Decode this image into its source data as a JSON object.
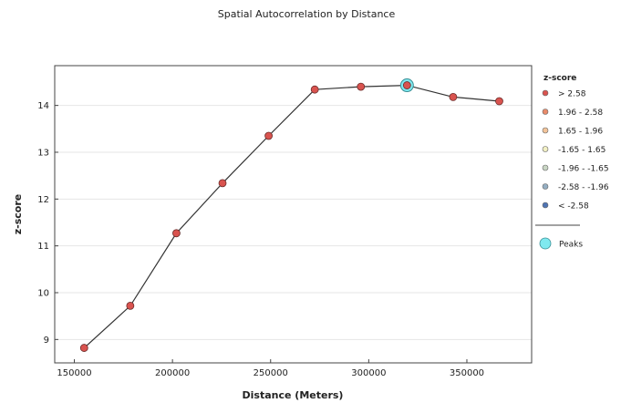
{
  "chart_data": {
    "type": "line",
    "title": "Spatial Autocorrelation by Distance",
    "xlabel": "Distance (Meters)",
    "ylabel": "z-score",
    "xlim": [
      140000,
      383000
    ],
    "ylim": [
      8.5,
      14.85
    ],
    "xticks": [
      150000,
      200000,
      250000,
      300000,
      350000
    ],
    "yticks": [
      9,
      10,
      11,
      12,
      13,
      14
    ],
    "grid": "horizontal",
    "series": [
      {
        "x": [
          155000,
          178500,
          202000,
          225500,
          249000,
          272500,
          296000,
          319500,
          343000,
          366500
        ],
        "y": [
          8.82,
          9.72,
          11.27,
          12.34,
          13.35,
          14.34,
          14.4,
          14.43,
          14.18,
          14.09
        ]
      }
    ],
    "peak": {
      "x": 319500,
      "y": 14.43
    },
    "legend": {
      "position": "right",
      "title": "z-score",
      "items": [
        {
          "label": "> 2.58",
          "color": "#d9534f"
        },
        {
          "label": "1.96 - 2.58",
          "color": "#e88a6a"
        },
        {
          "label": "1.65 - 1.96",
          "color": "#f3c49a"
        },
        {
          "label": "-1.65 - 1.65",
          "color": "#f2f0c4"
        },
        {
          "label": "-1.96 - -1.65",
          "color": "#c9d6c4"
        },
        {
          "label": "-2.58 - -1.96",
          "color": "#94aec2"
        },
        {
          "label": "< -2.58",
          "color": "#4f74b3"
        }
      ],
      "peaks_label": "Peaks",
      "peaks_color": "#7fe9ef"
    },
    "colors": {
      "line": "#333333",
      "point": "#d9534f"
    }
  }
}
